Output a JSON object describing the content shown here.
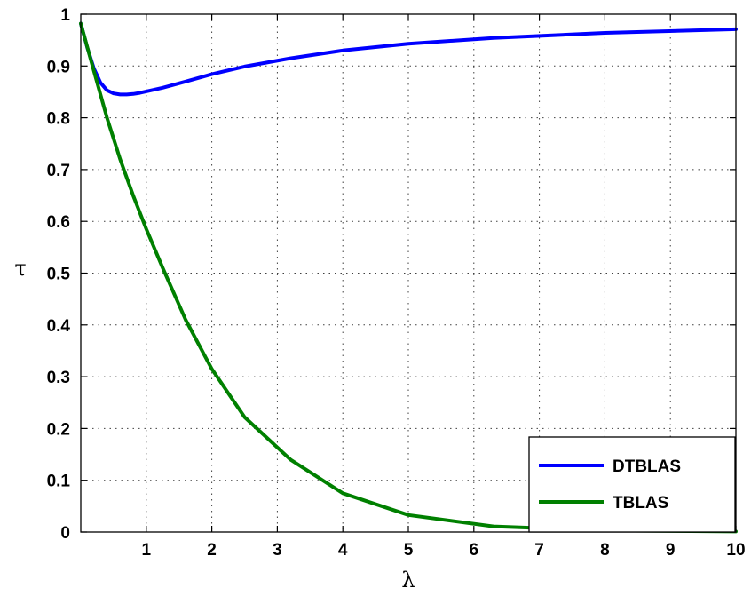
{
  "chart_data": {
    "type": "line",
    "title": "",
    "xlabel": "λ",
    "ylabel": "τ",
    "xlim": [
      0,
      10
    ],
    "ylim": [
      0,
      1
    ],
    "x_ticks": [
      1,
      2,
      3,
      4,
      5,
      6,
      7,
      8,
      9,
      10
    ],
    "y_ticks": [
      0,
      0.1,
      0.2,
      0.3,
      0.4,
      0.5,
      0.6,
      0.7,
      0.8,
      0.9,
      1
    ],
    "x_tick_labels": [
      "1",
      "2",
      "3",
      "4",
      "5",
      "6",
      "7",
      "8",
      "9",
      "10"
    ],
    "y_tick_labels": [
      "0",
      "0.1",
      "0.2",
      "0.3",
      "0.4",
      "0.5",
      "0.6",
      "0.7",
      "0.8",
      "0.9",
      "1"
    ],
    "grid": true,
    "legend_position": "bottom-right",
    "series": [
      {
        "name": "DTBLAS",
        "color": "#0000ff",
        "x": [
          0,
          0.1,
          0.2,
          0.3,
          0.4,
          0.5,
          0.6,
          0.7,
          0.8,
          0.9,
          1,
          1.25,
          1.6,
          2,
          2.5,
          3.2,
          4,
          5,
          6.3,
          8,
          10
        ],
        "y": [
          0.982,
          0.935,
          0.895,
          0.868,
          0.853,
          0.847,
          0.845,
          0.845,
          0.846,
          0.848,
          0.851,
          0.858,
          0.87,
          0.884,
          0.899,
          0.915,
          0.93,
          0.943,
          0.954,
          0.964,
          0.971
        ]
      },
      {
        "name": "TBLAS",
        "color": "#008000",
        "x": [
          0,
          0.2,
          0.4,
          0.6,
          0.8,
          1,
          1.25,
          1.6,
          2,
          2.5,
          3.2,
          4,
          5,
          6.3,
          8,
          10
        ],
        "y": [
          0.982,
          0.89,
          0.8,
          0.72,
          0.65,
          0.585,
          0.51,
          0.41,
          0.315,
          0.222,
          0.14,
          0.075,
          0.033,
          0.011,
          0.003,
          0.001
        ]
      }
    ]
  }
}
